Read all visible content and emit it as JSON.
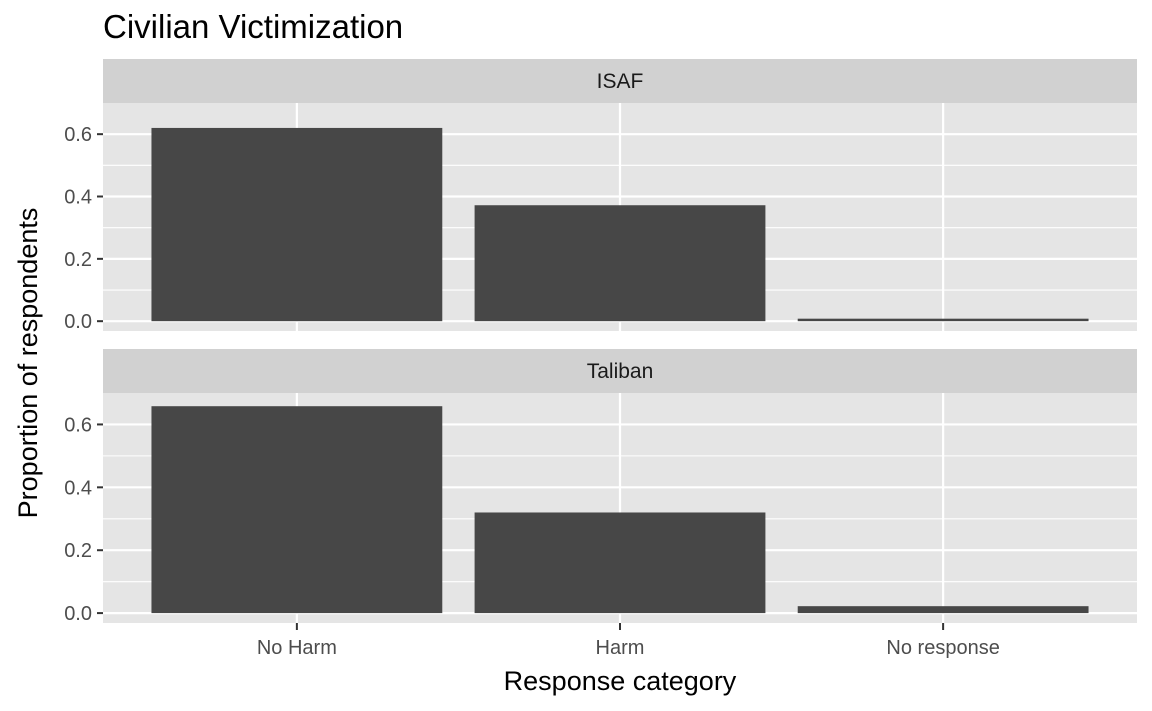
{
  "chart_data": {
    "type": "bar",
    "title": "Civilian Victimization",
    "xlabel": "Response category",
    "ylabel": "Proportion of respondents",
    "categories": [
      "No Harm",
      "Harm",
      "No response"
    ],
    "ylim": [
      0,
      0.7
    ],
    "yticks": [
      0.0,
      0.2,
      0.4,
      0.6
    ],
    "ytick_labels": [
      "0.0",
      "0.2",
      "0.4",
      "0.6"
    ],
    "grid": true,
    "legend": "none",
    "facet_layout": "stacked-rows",
    "panels": [
      {
        "strip": "ISAF",
        "values": [
          0.62,
          0.372,
          0.008
        ]
      },
      {
        "strip": "Taliban",
        "values": [
          0.658,
          0.32,
          0.022
        ]
      }
    ],
    "colors": {
      "bar": "#474747",
      "panel_background": "#e5e5e5",
      "strip_background": "#d1d1d1",
      "grid": "#ffffff"
    }
  }
}
